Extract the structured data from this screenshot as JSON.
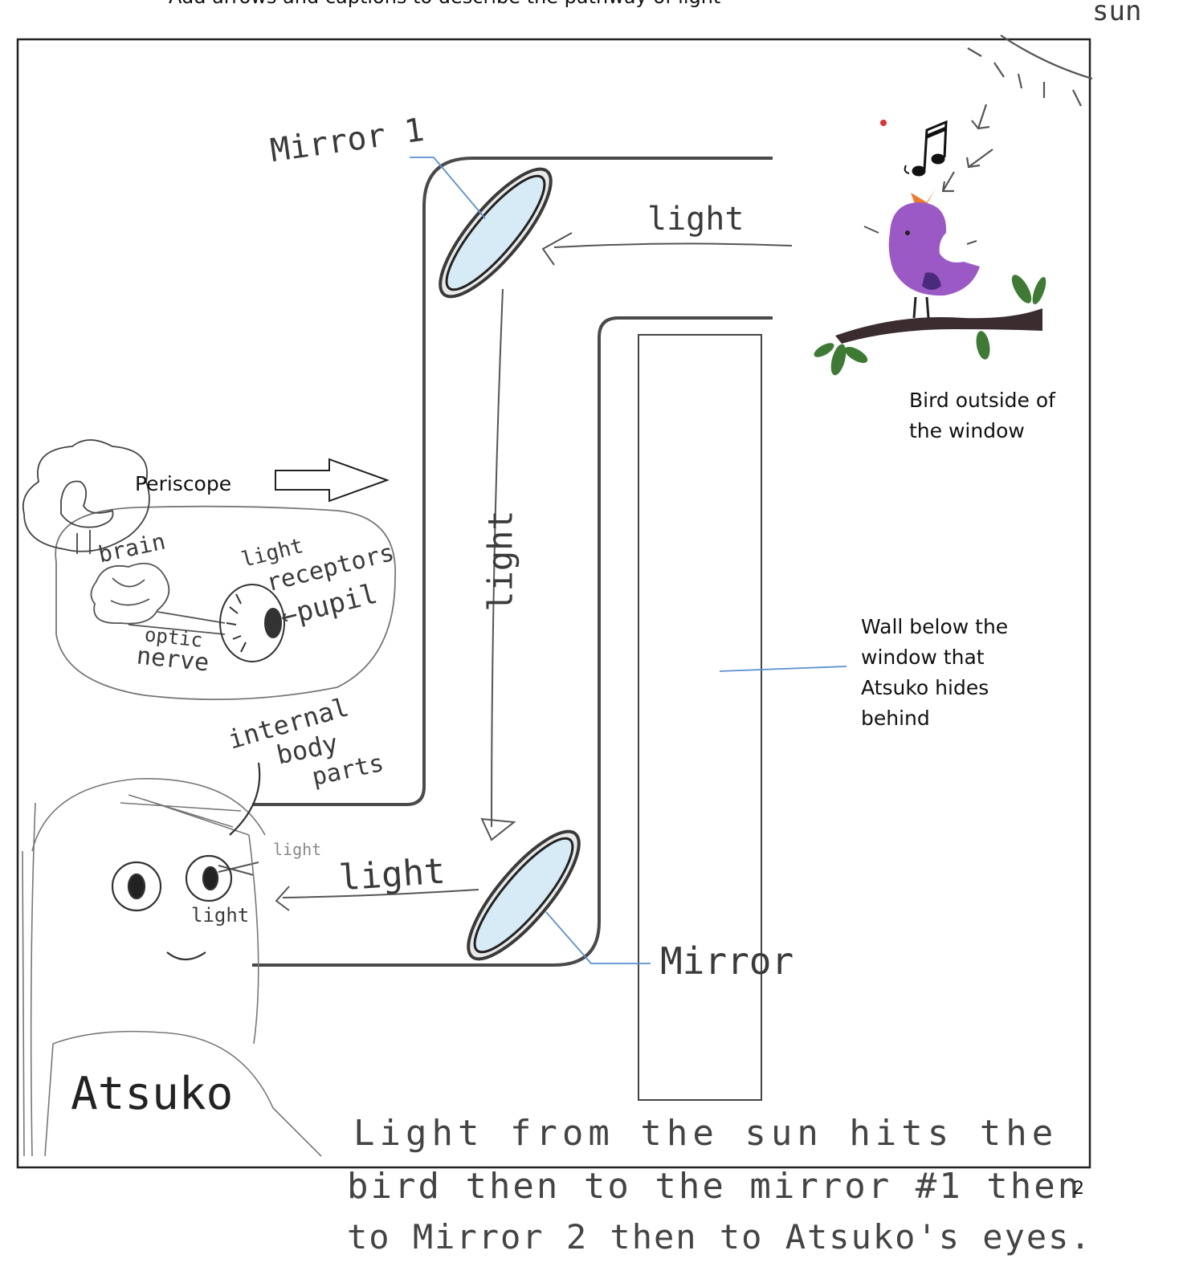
{
  "instruction": {
    "bullet": "•",
    "text": "Add arrows and captions to describe the pathway of light"
  },
  "labels": {
    "sun": "sun",
    "mirror1": "Mirror 1",
    "mirror2": "Mirror",
    "light_top": "light",
    "light_vertical": "light",
    "light_bottom": "light",
    "light_eye_upper": "light",
    "light_eye_lower": "light",
    "periscope": "Periscope",
    "bird_caption_line1": "Bird outside of",
    "bird_caption_line2": "the window",
    "wall_caption_line1": "Wall below the",
    "wall_caption_line2": "window that",
    "wall_caption_line3": "Atsuko hides",
    "wall_caption_line4": "behind",
    "brain": "brain",
    "light_receptors_1": "light",
    "light_receptors_2": "receptors",
    "pupil": "←pupil",
    "optic": "optic",
    "nerve": "nerve",
    "internal_1": "internal",
    "internal_2": "body",
    "internal_3": "parts",
    "atsuko": "Atsuko"
  },
  "explanation": {
    "line1": "Light from the sun hits the",
    "line2": "bird then to the mirror #1 then",
    "line3": "to Mirror 2 then to Atsuko's eyes."
  },
  "page_number": "2",
  "colors": {
    "frame": "#222222",
    "tube": "#4a4a4a",
    "mirror_fill": "#d6ebf6",
    "leader": "#5b8fd0",
    "bird": "#9b59c6",
    "beak": "#f07a2a",
    "leaf": "#3f7a35",
    "branch": "#3b2c2f",
    "pencil": "#555555"
  }
}
